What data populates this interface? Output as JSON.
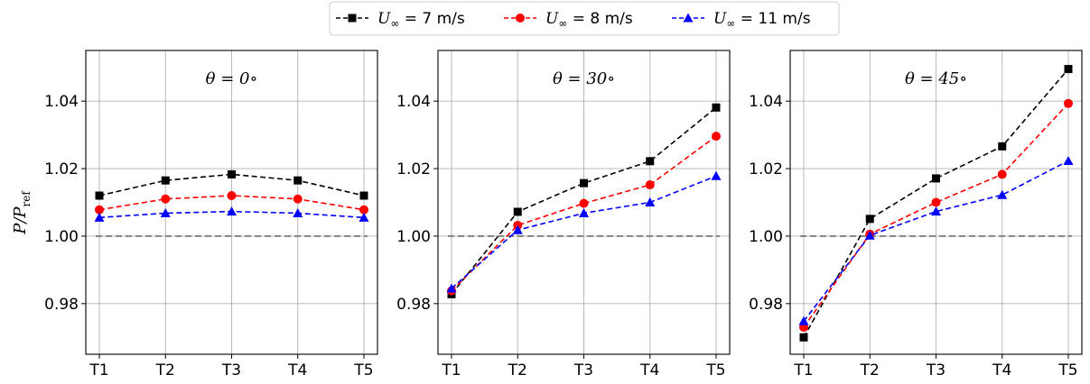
{
  "colors": {
    "series": [
      "#000000",
      "#ff0000",
      "#0000ff"
    ],
    "reference_line": "#808080",
    "grid": "#b0b0b0"
  },
  "legend": {
    "placement": "top-center",
    "entries": [
      {
        "prefix": "U",
        "sub": "∞",
        "rest": " = 7 m/s",
        "marker": "square"
      },
      {
        "prefix": "U",
        "sub": "∞",
        "rest": " = 8 m/s",
        "marker": "circle"
      },
      {
        "prefix": "U",
        "sub": "∞",
        "rest": " = 11 m/s",
        "marker": "triangle"
      }
    ]
  },
  "ylabel": {
    "main": "P/P",
    "sub": "ref"
  },
  "chart_data": [
    {
      "type": "line",
      "title": "θ = 0∘",
      "categories": [
        "T1",
        "T2",
        "T3",
        "T4",
        "T5"
      ],
      "ylim": [
        0.965,
        1.055
      ],
      "yticks": [
        "0.98",
        "1.00",
        "1.02",
        "1.04"
      ],
      "ytick_values": [
        0.98,
        1.0,
        1.02,
        1.04
      ],
      "grid": true,
      "reference_y": 1.0,
      "series": [
        {
          "name": "U∞ = 7 m/s",
          "values": [
            1.012,
            1.0165,
            1.0183,
            1.0165,
            1.012
          ]
        },
        {
          "name": "U∞ = 8 m/s",
          "values": [
            1.0078,
            1.011,
            1.012,
            1.011,
            1.0078
          ]
        },
        {
          "name": "U∞ = 11 m/s",
          "values": [
            1.0055,
            1.0068,
            1.0073,
            1.0068,
            1.0055
          ]
        }
      ]
    },
    {
      "type": "line",
      "title": "θ = 30∘",
      "categories": [
        "T1",
        "T2",
        "T3",
        "T4",
        "T5"
      ],
      "ylim": [
        0.965,
        1.055
      ],
      "yticks": [
        "0.98",
        "1.00",
        "1.02",
        "1.04"
      ],
      "ytick_values": [
        0.98,
        1.0,
        1.02,
        1.04
      ],
      "grid": true,
      "reference_y": 1.0,
      "series": [
        {
          "name": "U∞ = 7 m/s",
          "values": [
            0.9828,
            1.0072,
            1.0157,
            1.0222,
            1.0381
          ]
        },
        {
          "name": "U∞ = 8 m/s",
          "values": [
            0.9838,
            1.0032,
            1.0097,
            1.0152,
            1.0296
          ]
        },
        {
          "name": "U∞ = 11 m/s",
          "values": [
            0.9845,
            1.0018,
            1.0068,
            1.01,
            1.0178
          ]
        }
      ]
    },
    {
      "type": "line",
      "title": "θ = 45∘",
      "categories": [
        "T1",
        "T2",
        "T3",
        "T4",
        "T5"
      ],
      "ylim": [
        0.965,
        1.055
      ],
      "yticks": [
        "0.98",
        "1.00",
        "1.02",
        "1.04"
      ],
      "ytick_values": [
        0.98,
        1.0,
        1.02,
        1.04
      ],
      "grid": true,
      "reference_y": 1.0,
      "series": [
        {
          "name": "U∞ = 7 m/s",
          "values": [
            0.97,
            1.0051,
            1.0171,
            1.0266,
            1.0495
          ]
        },
        {
          "name": "U∞ = 8 m/s",
          "values": [
            0.973,
            1.0006,
            1.01,
            1.0183,
            1.0393
          ]
        },
        {
          "name": "U∞ = 11 m/s",
          "values": [
            0.9748,
            1.0002,
            1.0073,
            1.0122,
            1.0223
          ]
        }
      ]
    }
  ]
}
